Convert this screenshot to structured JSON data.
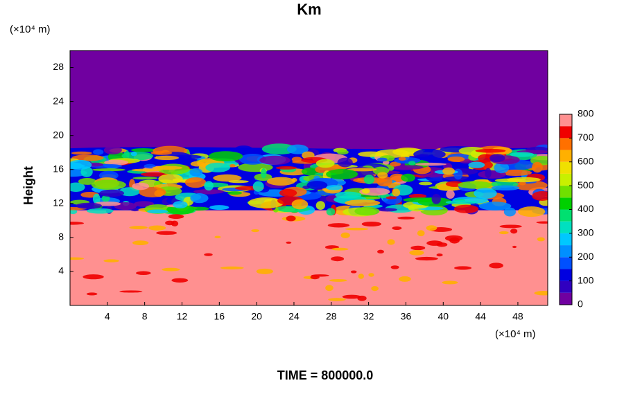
{
  "chart_data": {
    "type": "contour",
    "title": "Km",
    "y_unit_label": "(×10⁴ m)",
    "x_unit_label": "(×10⁴ m)",
    "y_label": "Height",
    "time_label": "TIME = 800000.0",
    "xlim": [
      0,
      51.2
    ],
    "xticks": [
      4,
      8,
      12,
      16,
      20,
      24,
      28,
      32,
      36,
      40,
      44,
      48
    ],
    "ylim": [
      0,
      30
    ],
    "yticks": [
      4,
      8,
      12,
      16,
      20,
      24,
      28
    ],
    "colorbar": {
      "levels": [
        0,
        50,
        100,
        150,
        200,
        250,
        300,
        350,
        400,
        450,
        500,
        550,
        600,
        650,
        700,
        750,
        800
      ],
      "ticks": [
        0,
        100,
        200,
        300,
        400,
        500,
        600,
        700,
        800
      ],
      "colors": [
        "#7000a0",
        "#3000c0",
        "#0000e0",
        "#0050ff",
        "#0090ff",
        "#00c8ff",
        "#00e0c0",
        "#00e070",
        "#00d000",
        "#70e000",
        "#c8f000",
        "#f0e000",
        "#ffb000",
        "#ff7000",
        "#f00000",
        "#ff9090"
      ]
    }
  }
}
